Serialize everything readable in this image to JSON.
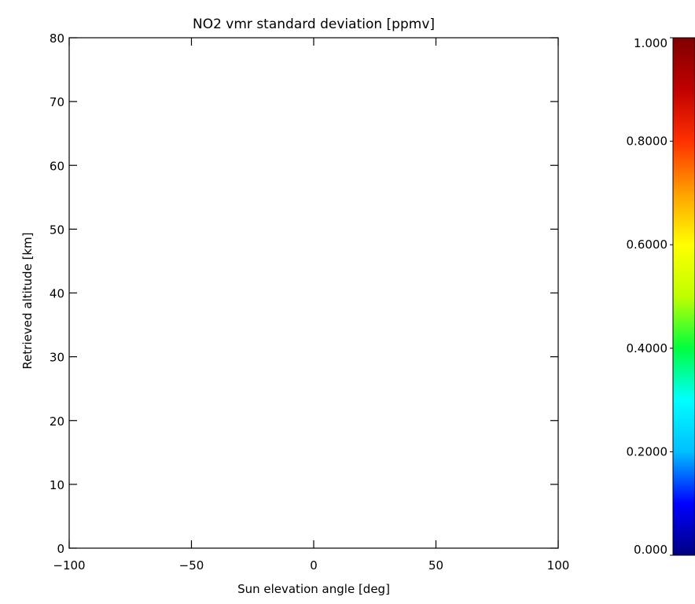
{
  "chart_data": [
    {
      "type": "heatmap",
      "title": "NO2 vmr standard deviation [ppmv]",
      "xlabel": "Sun elevation angle [deg]",
      "ylabel": "Retrieved altitude [km]",
      "xlim": [
        -100,
        100
      ],
      "ylim": [
        0,
        80
      ],
      "x_ticks": [
        -100,
        -50,
        0,
        50,
        100
      ],
      "x_tick_labels": [
        "−100",
        "−50",
        "0",
        "50",
        "100"
      ],
      "y_ticks": [
        0,
        10,
        20,
        30,
        40,
        50,
        60,
        70,
        80
      ],
      "y_tick_labels": [
        "0",
        "10",
        "20",
        "30",
        "40",
        "50",
        "60",
        "70",
        "80"
      ],
      "grid": false,
      "values": []
    },
    {
      "type": "colorbar",
      "colormap": "rainbow",
      "range": [
        0,
        1
      ],
      "ticks": [
        0,
        0.2,
        0.4,
        0.6,
        0.8,
        1.0
      ],
      "tick_labels": [
        "0.000",
        "0.2000",
        "0.4000",
        "0.6000",
        "0.8000",
        "1.000"
      ],
      "colors": [
        "#000080",
        "#0000ff",
        "#00bfff",
        "#00ffff",
        "#00ff40",
        "#c0ff00",
        "#ffff00",
        "#ffa000",
        "#ff3000",
        "#c00000",
        "#800000"
      ]
    }
  ]
}
